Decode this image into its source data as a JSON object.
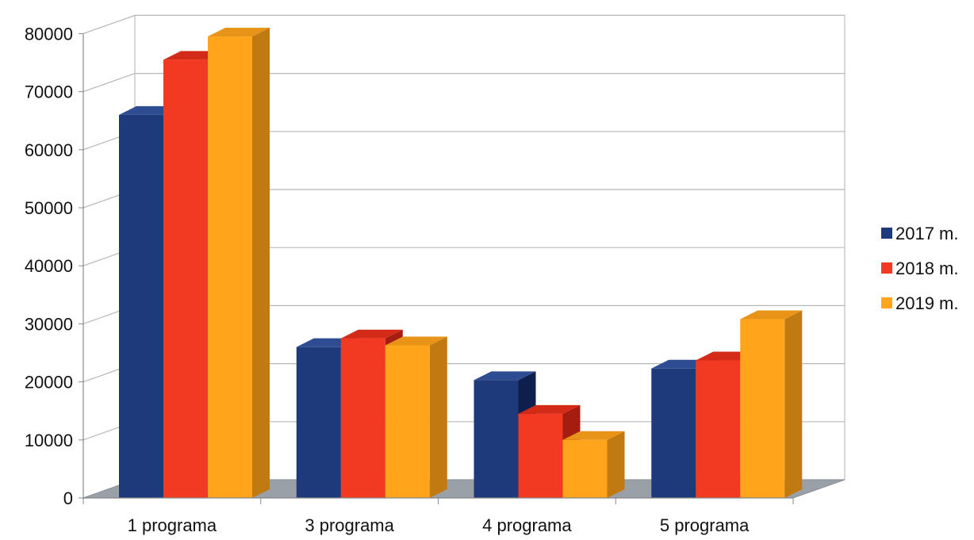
{
  "chart_data": {
    "type": "bar",
    "style": "3d-clustered-column",
    "categories": [
      "1 programa",
      "3 programa",
      "4 programa",
      "5 programa"
    ],
    "series": [
      {
        "name": "2017 m.",
        "color": "#1f3a7a",
        "side_color": "#0f1f4d",
        "top_color": "#2d4c91",
        "values": [
          66000,
          26000,
          20300,
          22300
        ]
      },
      {
        "name": "2018 m.",
        "color": "#f13a21",
        "side_color": "#a51d10",
        "top_color": "#d42a18",
        "values": [
          75500,
          27500,
          14500,
          23700
        ]
      },
      {
        "name": "2019 m.",
        "color": "#ffa41b",
        "side_color": "#c17a12",
        "top_color": "#e79418",
        "values": [
          79500,
          26300,
          10000,
          30800
        ]
      }
    ],
    "ylim": [
      0,
      80000
    ],
    "yticks": [
      "0",
      "10000",
      "20000",
      "30000",
      "40000",
      "50000",
      "60000",
      "70000",
      "80000"
    ],
    "grid": true,
    "legend_position": "right",
    "xlabel": "",
    "ylabel": "",
    "title": ""
  }
}
